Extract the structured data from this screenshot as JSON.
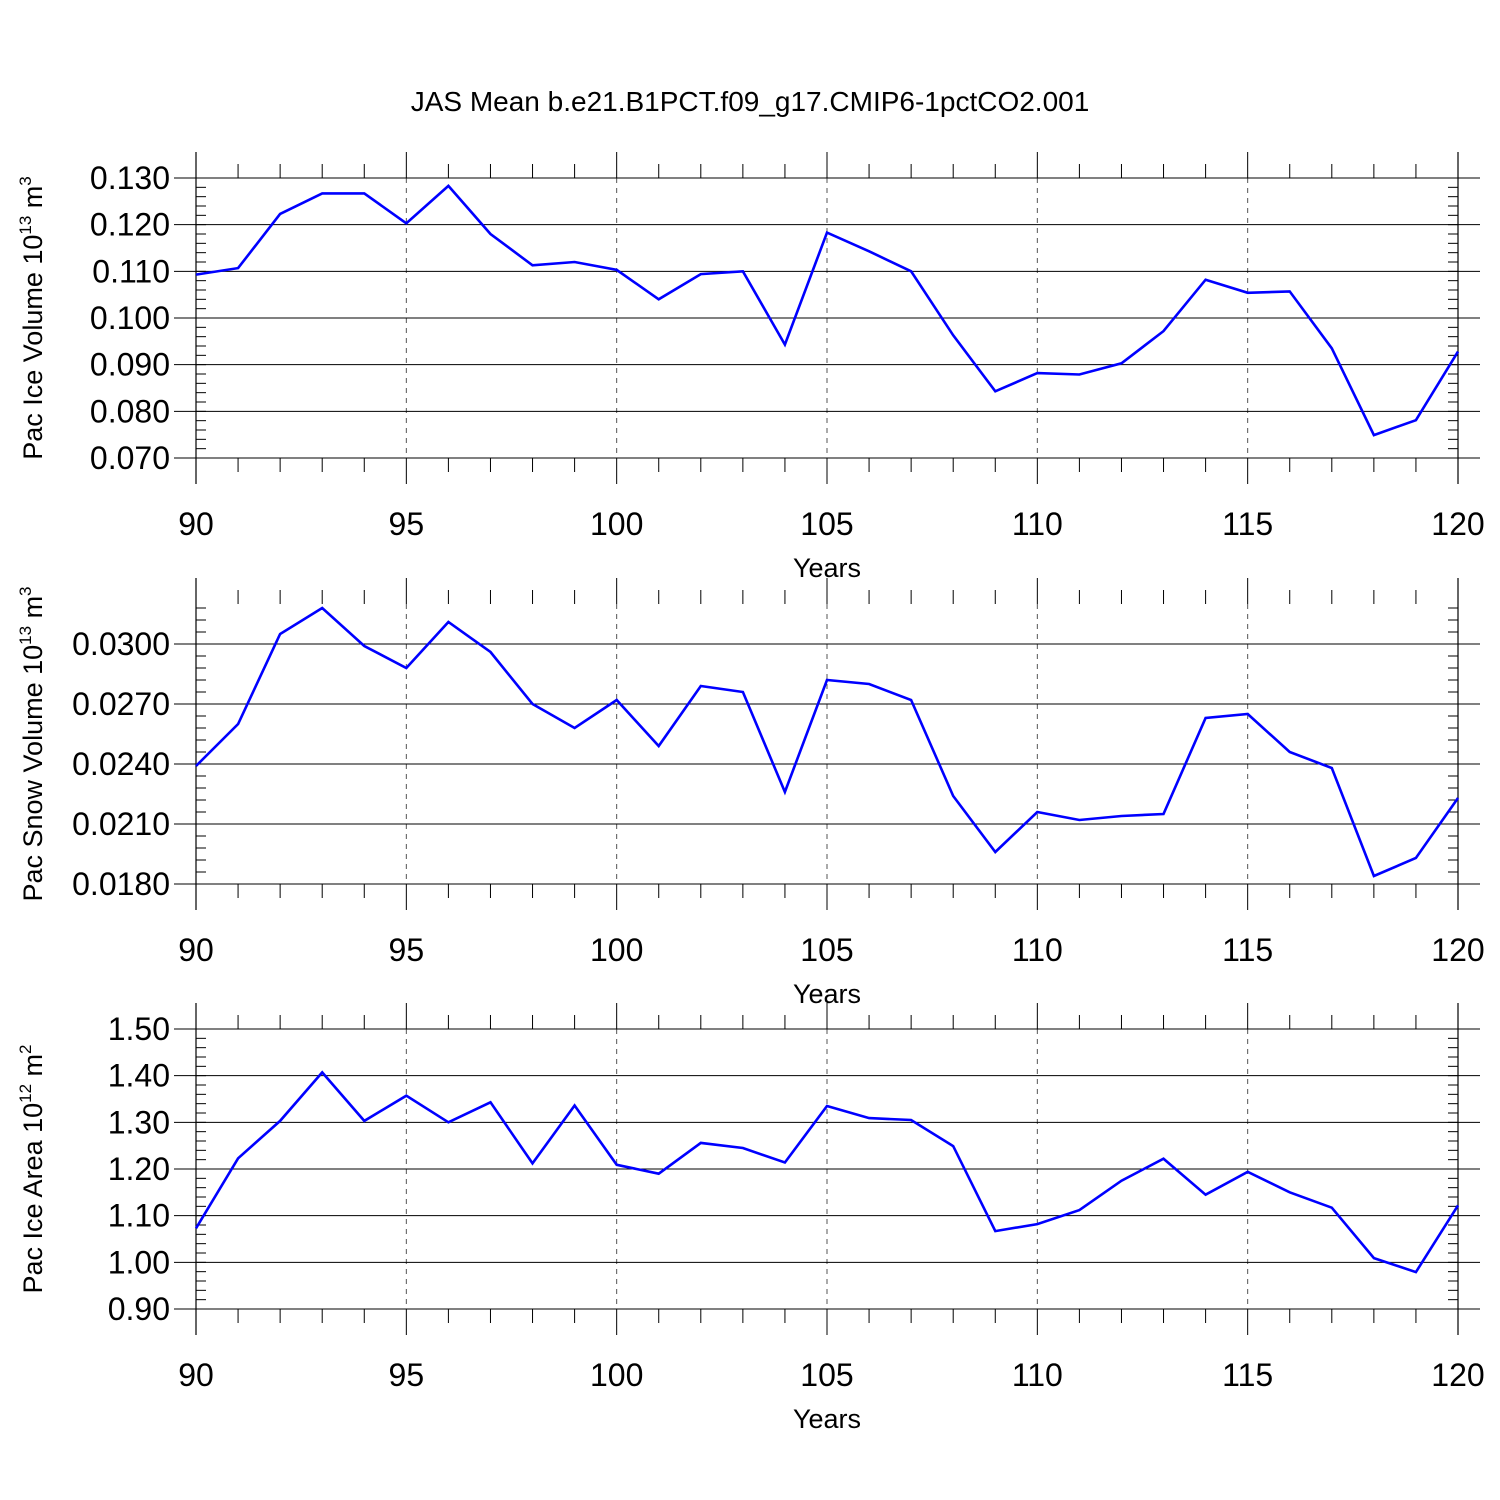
{
  "title": "JAS Mean b.e21.B1PCT.f09_g17.CMIP6-1pctCO2.001",
  "chart_data": [
    {
      "type": "line",
      "xlabel": "Years",
      "ylabel": {
        "text": "Pac Ice Volume 10",
        "sup1": "13",
        "mid": " m",
        "sup2": "3"
      },
      "xlim": [
        90,
        120
      ],
      "ylim": [
        0.07,
        0.13
      ],
      "xticks": [
        90,
        95,
        100,
        105,
        110,
        115,
        120
      ],
      "yticks": [
        0.07,
        0.08,
        0.09,
        0.1,
        0.11,
        0.12,
        0.13
      ],
      "ytick_labels": [
        "0.070",
        "0.080",
        "0.090",
        "0.100",
        "0.110",
        "0.120",
        "0.130"
      ],
      "x": [
        90,
        91,
        92,
        93,
        94,
        95,
        96,
        97,
        98,
        99,
        100,
        101,
        102,
        103,
        104,
        105,
        106,
        107,
        108,
        109,
        110,
        111,
        112,
        113,
        114,
        115,
        116,
        117,
        118,
        119,
        120
      ],
      "series": [
        {
          "color": "#0000ff",
          "values": [
            0.1093,
            0.1107,
            0.1223,
            0.1267,
            0.1267,
            0.1203,
            0.1283,
            0.118,
            0.1113,
            0.112,
            0.1103,
            0.104,
            0.1094,
            0.11,
            0.0943,
            0.1183,
            0.1143,
            0.11,
            0.0963,
            0.0843,
            0.0882,
            0.0879,
            0.0903,
            0.0972,
            0.1082,
            0.1054,
            0.1057,
            0.0935,
            0.0749,
            0.0781,
            0.0928
          ]
        }
      ]
    },
    {
      "type": "line",
      "xlabel": "Years",
      "ylabel": {
        "text": "Pac Snow Volume 10",
        "sup1": "13",
        "mid": " m",
        "sup2": "3"
      },
      "xlim": [
        90,
        120
      ],
      "ylim": [
        0.018,
        0.032
      ],
      "xticks": [
        90,
        95,
        100,
        105,
        110,
        115,
        120
      ],
      "yticks": [
        0.018,
        0.021,
        0.024,
        0.027,
        0.03
      ],
      "ytick_labels": [
        "0.0180",
        "0.0210",
        "0.0240",
        "0.0270",
        "0.0300"
      ],
      "x": [
        90,
        91,
        92,
        93,
        94,
        95,
        96,
        97,
        98,
        99,
        100,
        101,
        102,
        103,
        104,
        105,
        106,
        107,
        108,
        109,
        110,
        111,
        112,
        113,
        114,
        115,
        116,
        117,
        118,
        119,
        120
      ],
      "series": [
        {
          "color": "#0000ff",
          "values": [
            0.0239,
            0.026,
            0.0305,
            0.0318,
            0.0299,
            0.0288,
            0.0311,
            0.0296,
            0.027,
            0.0258,
            0.0272,
            0.0249,
            0.0279,
            0.0276,
            0.0226,
            0.0282,
            0.028,
            0.0272,
            0.0224,
            0.0196,
            0.0216,
            0.0212,
            0.0214,
            0.0215,
            0.0263,
            0.0265,
            0.0246,
            0.0238,
            0.0184,
            0.0193,
            0.0223
          ]
        }
      ]
    },
    {
      "type": "line",
      "xlabel": "Years",
      "ylabel": {
        "text": "Pac Ice Area 10",
        "sup1": "12",
        "mid": " m",
        "sup2": "2"
      },
      "xlim": [
        90,
        120
      ],
      "ylim": [
        0.9,
        1.5
      ],
      "xticks": [
        90,
        95,
        100,
        105,
        110,
        115,
        120
      ],
      "yticks": [
        0.9,
        1.0,
        1.1,
        1.2,
        1.3,
        1.4,
        1.5
      ],
      "ytick_labels": [
        "0.90",
        "1.00",
        "1.10",
        "1.20",
        "1.30",
        "1.40",
        "1.50"
      ],
      "x": [
        90,
        91,
        92,
        93,
        94,
        95,
        96,
        97,
        98,
        99,
        100,
        101,
        102,
        103,
        104,
        105,
        106,
        107,
        108,
        109,
        110,
        111,
        112,
        113,
        114,
        115,
        116,
        117,
        118,
        119,
        120
      ],
      "series": [
        {
          "color": "#0000ff",
          "values": [
            1.073,
            1.223,
            1.303,
            1.407,
            1.303,
            1.357,
            1.3,
            1.343,
            1.212,
            1.336,
            1.209,
            1.19,
            1.256,
            1.245,
            1.214,
            1.335,
            1.309,
            1.305,
            1.249,
            1.067,
            1.082,
            1.112,
            1.175,
            1.222,
            1.145,
            1.194,
            1.15,
            1.117,
            1.009,
            0.979,
            1.122
          ]
        }
      ]
    }
  ]
}
